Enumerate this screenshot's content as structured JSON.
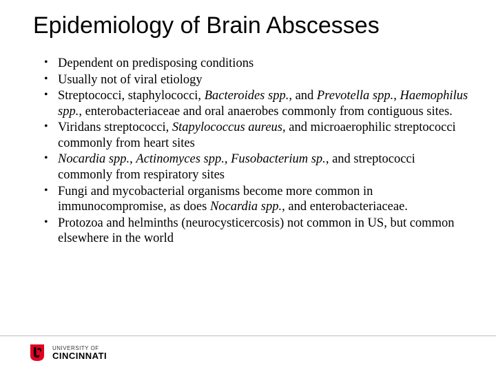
{
  "slide": {
    "title": "Epidemiology of Brain Abscesses",
    "title_font_family": "Arial",
    "title_font_size_pt": 26,
    "title_color": "#000000",
    "body_font_family": "Times New Roman",
    "body_font_size_pt": 14,
    "body_color": "#000000",
    "background_color": "#ffffff",
    "bullets": [
      {
        "segments": [
          {
            "text": "Dependent on predisposing conditions",
            "italic": false
          }
        ]
      },
      {
        "segments": [
          {
            "text": "Usually not of viral etiology",
            "italic": false
          }
        ]
      },
      {
        "segments": [
          {
            "text": "Streptococci, staphylococci, ",
            "italic": false
          },
          {
            "text": "Bacteroides spp.",
            "italic": true
          },
          {
            "text": ", and ",
            "italic": false
          },
          {
            "text": "Prevotella spp.",
            "italic": true
          },
          {
            "text": ", ",
            "italic": false
          },
          {
            "text": "Haemophilus spp.",
            "italic": true
          },
          {
            "text": ", enterobacteriaceae and oral anaerobes commonly from contiguous sites.",
            "italic": false
          }
        ]
      },
      {
        "segments": [
          {
            "text": "Viridans streptococci, ",
            "italic": false
          },
          {
            "text": "Stapylococcus aureus",
            "italic": true
          },
          {
            "text": ", and microaerophilic streptococci commonly from heart sites",
            "italic": false
          }
        ]
      },
      {
        "segments": [
          {
            "text": "Nocardia spp.",
            "italic": true
          },
          {
            "text": ", ",
            "italic": false
          },
          {
            "text": "Actinomyces spp.",
            "italic": true
          },
          {
            "text": ", ",
            "italic": false
          },
          {
            "text": "Fusobacterium sp.",
            "italic": true
          },
          {
            "text": ", and streptococci commonly from respiratory sites",
            "italic": false
          }
        ]
      },
      {
        "segments": [
          {
            "text": "Fungi and mycobacterial organisms become more common in immunocompromise, as does ",
            "italic": false
          },
          {
            "text": "Nocardia spp.",
            "italic": true
          },
          {
            "text": ", and enterobacteriaceae.",
            "italic": false
          }
        ]
      },
      {
        "segments": [
          {
            "text": "Protozoa and helminths (neurocysticercosis) not common in US, but common elsewhere in the world",
            "italic": false
          }
        ]
      }
    ]
  },
  "footer": {
    "divider_color": "#bdbdbd",
    "logo": {
      "mark_color_red": "#e00122",
      "mark_color_black": "#000000",
      "top_text": "UNIVERSITY OF",
      "bottom_text": "CINCINNATI",
      "top_color": "#333333",
      "bottom_color": "#000000"
    }
  }
}
